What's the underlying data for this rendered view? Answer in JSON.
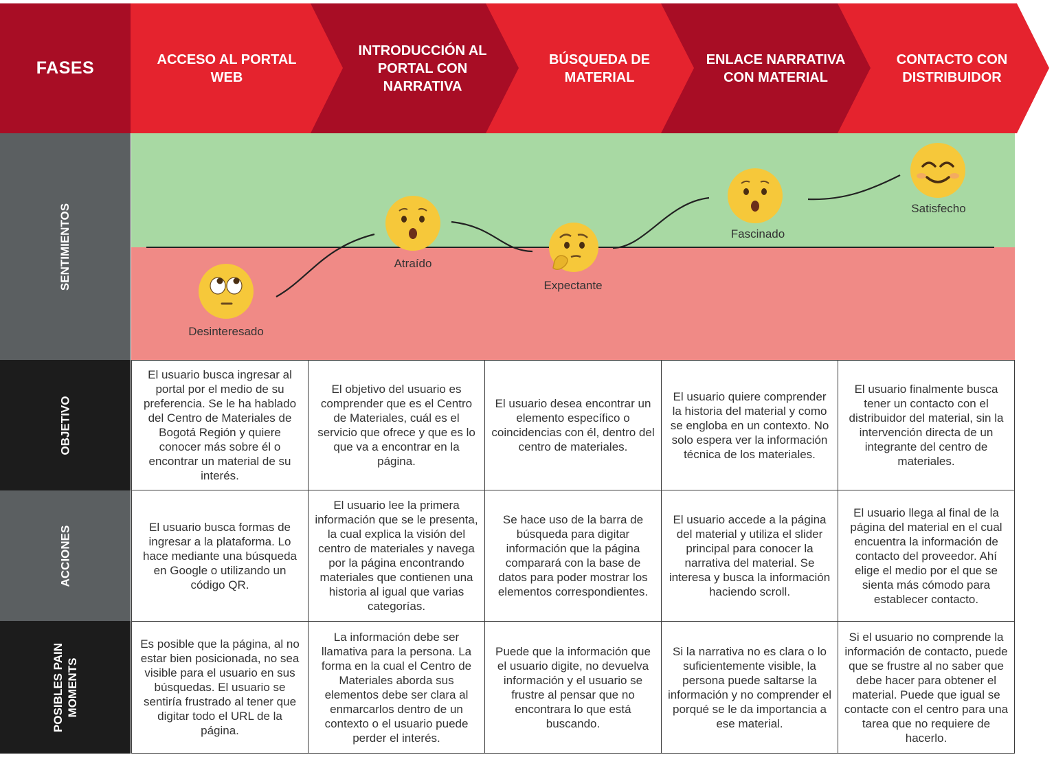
{
  "header": {
    "fases_label": "FASES",
    "phases": [
      "ACCESO AL PORTAL WEB",
      "INTRODUCCIÓN AL PORTAL CON NARRATIVA",
      "BÚSQUEDA DE MATERIAL",
      "ENLACE NARRATIVA CON MATERIAL",
      "CONTACTO CON DISTRIBUIDOR"
    ]
  },
  "rows": {
    "sentimientos": "SENTIMIENTOS",
    "objetivo": "OBJETIVO",
    "acciones": "ACCIONES",
    "pain": "POSIBLES PAIN MOMENTS"
  },
  "emotions": [
    {
      "label": "Desinteresado",
      "icon": "eye-roll-emoji-icon",
      "level": "negative"
    },
    {
      "label": "Atraído",
      "icon": "surprised-emoji-icon",
      "level": "positive"
    },
    {
      "label": "Expectante",
      "icon": "thinking-emoji-icon",
      "level": "negative"
    },
    {
      "label": "Fascinado",
      "icon": "surprised-emoji-icon",
      "level": "positive"
    },
    {
      "label": "Satisfecho",
      "icon": "smiling-emoji-icon",
      "level": "positive"
    }
  ],
  "objetivo": [
    "El usuario busca ingresar al portal por el medio de su preferencia. Se le ha hablado del Centro de Materiales de Bogotá Región y quiere conocer más sobre él o encontrar un material de su interés.",
    "El objetivo del usuario es comprender que es el Centro de Materiales, cuál es el servicio que ofrece y que es lo que va a encontrar en la página.",
    "El usuario desea encontrar un elemento específico o coincidencias con él, dentro del centro de materiales.",
    "El usuario quiere comprender la historia del material y como se engloba en un contexto. No solo espera ver la información técnica de los materiales.",
    "El usuario finalmente busca tener un contacto con el distribuidor del material, sin la intervención directa de un integrante del centro de materiales."
  ],
  "acciones": [
    "El usuario busca formas de ingresar a la plataforma. Lo hace mediante una búsqueda en Google o utilizando un código QR.",
    "El usuario lee la primera información que se le presenta, la cual explica la visión del centro de materiales y navega por la página encontrando materiales que contienen una historia al igual que varias categorías.",
    "Se hace uso de la barra de búsqueda para digitar información que la página comparará con la base de datos para poder mostrar los elementos correspondientes.",
    "El usuario accede a la página del material y utiliza el slider principal para conocer la narrativa del material. Se interesa y busca la información haciendo scroll.",
    "El usuario llega al final de la página del material en el cual encuentra la información de contacto del proveedor. Ahí elige el medio por el que se sienta más cómodo para establecer contacto."
  ],
  "pain": [
    "Es posible que la página, al no estar bien posicionada, no sea visible para el usuario en sus búsquedas. El usuario se sentiría frustrado al tener que digitar todo el URL de la página.",
    "La información debe ser llamativa para la persona. La forma en la cual el Centro de Materiales aborda sus elementos debe ser clara al enmarcarlos dentro de un contexto o el usuario puede perder el interés.",
    "Puede que la información que el usuario digite, no devuelva información y el usuario se frustre al pensar que no encontrara lo que está buscando.",
    "Si la narrativa no es clara o lo suficientemente visible, la persona puede saltarse la información y no comprender el porqué se le da importancia a ese material.",
    "Si el usuario no comprende la información de contacto, puede que se frustre al no saber que debe hacer para obtener el material. Puede que igual se contacte con el centro para una tarea que no requiere de hacerlo."
  ],
  "colors": {
    "dark_red": "#a80d25",
    "bright_red": "#e5232e",
    "side_gray": "#5b5f61",
    "side_black": "#1c1c1c",
    "positive_band": "#a8d9a3",
    "negative_band": "#f08a86",
    "emoji_yellow": "#f6c83a"
  }
}
